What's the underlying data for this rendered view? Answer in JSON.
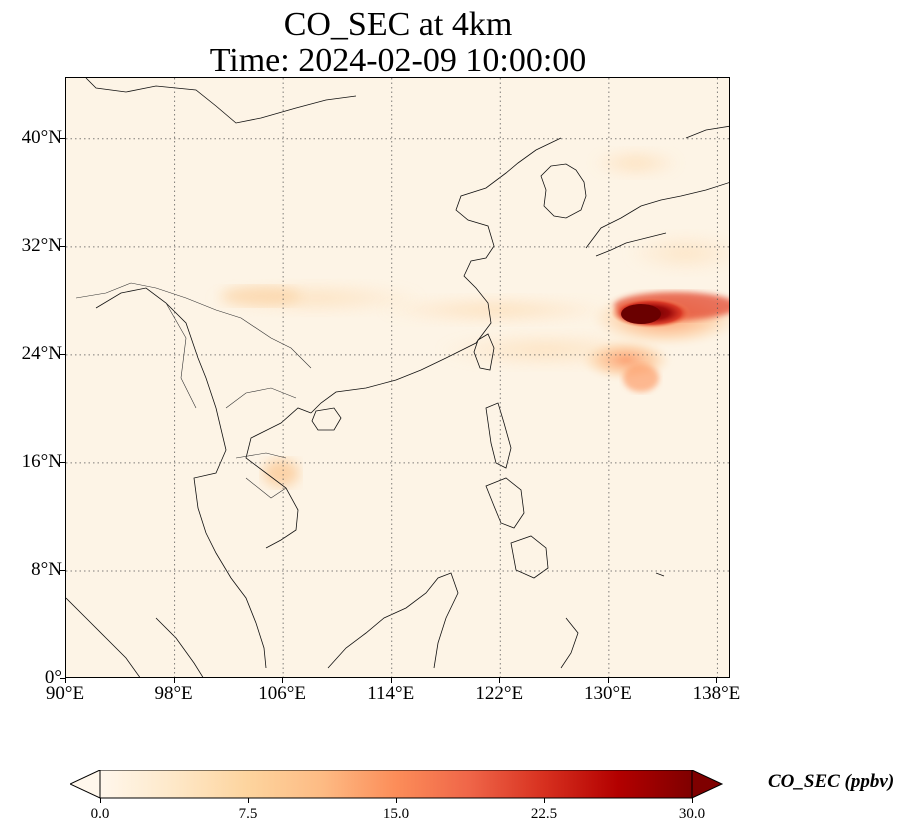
{
  "figure": {
    "title_line1": "CO_SEC at 4km",
    "title_line2": "Time: 2024-02-09 10:00:00"
  },
  "map": {
    "lat_ticks": [
      "40°N",
      "32°N",
      "24°N",
      "16°N",
      "8°N",
      "0°"
    ],
    "lon_ticks": [
      "90°E",
      "98°E",
      "106°E",
      "114°E",
      "122°E",
      "130°E",
      "138°E"
    ],
    "lat_range": [
      0,
      44.5
    ],
    "lon_range": [
      90,
      139
    ],
    "gridlines": "dotted",
    "colormap": "OrRd",
    "background_color": "#fdf4e6",
    "plume_color": "#7a0000"
  },
  "colorbar": {
    "label": "CO_SEC (ppbv)",
    "ticks": [
      "0.0",
      "7.5",
      "15.0",
      "22.5",
      "30.0"
    ],
    "min": 0,
    "max": 30,
    "extend": "both",
    "stops": [
      "#fff7ec",
      "#fee8c8",
      "#fdd49e",
      "#fdbb84",
      "#fc8d59",
      "#ef6548",
      "#d7301f",
      "#b30000",
      "#7f0000"
    ]
  }
}
